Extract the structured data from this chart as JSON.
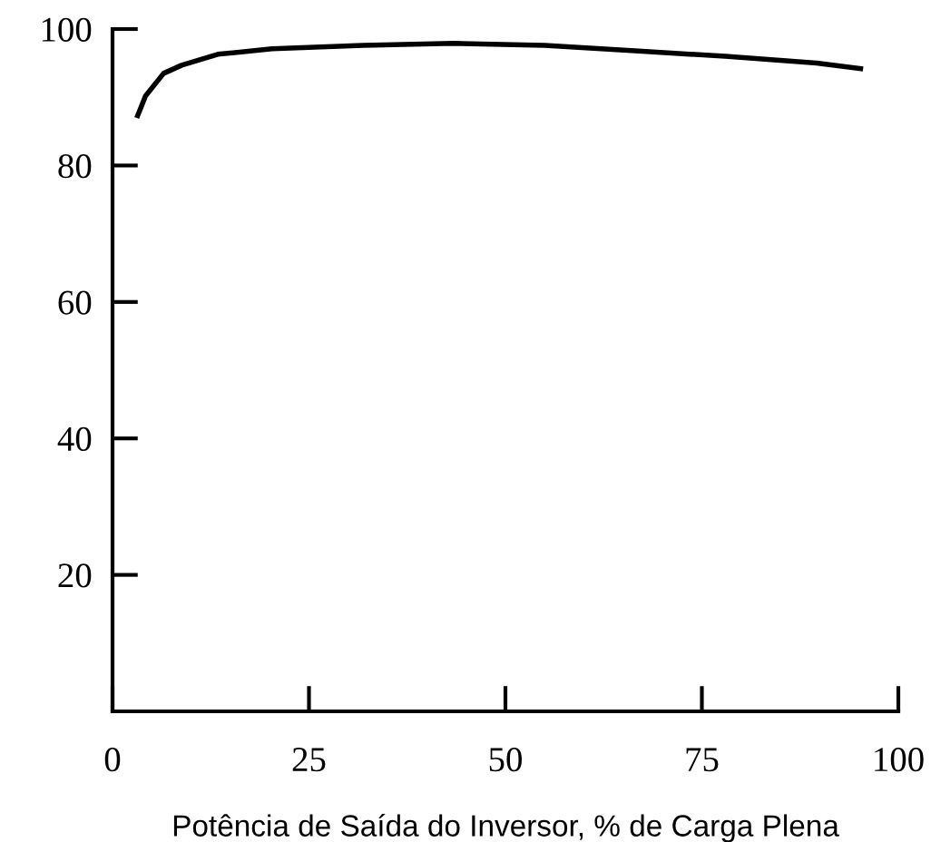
{
  "chart_data": {
    "type": "line",
    "xlabel": "Potência de Saída do Inversor, % de Carga Plena",
    "x": [
      3.2,
      4.2,
      6.5,
      8.8,
      13.4,
      20.3,
      31.9,
      43.4,
      55,
      66.5,
      78,
      89.6,
      95.2
    ],
    "series": [
      {
        "color": "#000000",
        "values": [
          87.3,
          90.2,
          93.5,
          94.7,
          96.3,
          97.1,
          97.6,
          97.9,
          97.6,
          96.8,
          96,
          95,
          94.2
        ]
      }
    ],
    "xlim": [
      0,
      100
    ],
    "ylim": [
      0,
      100
    ],
    "xticks": [
      0,
      25,
      50,
      75,
      100
    ],
    "yticks": [
      20,
      40,
      60,
      80,
      100
    ],
    "grid": false,
    "legend": false,
    "marker": "none",
    "line_style": "solid"
  }
}
